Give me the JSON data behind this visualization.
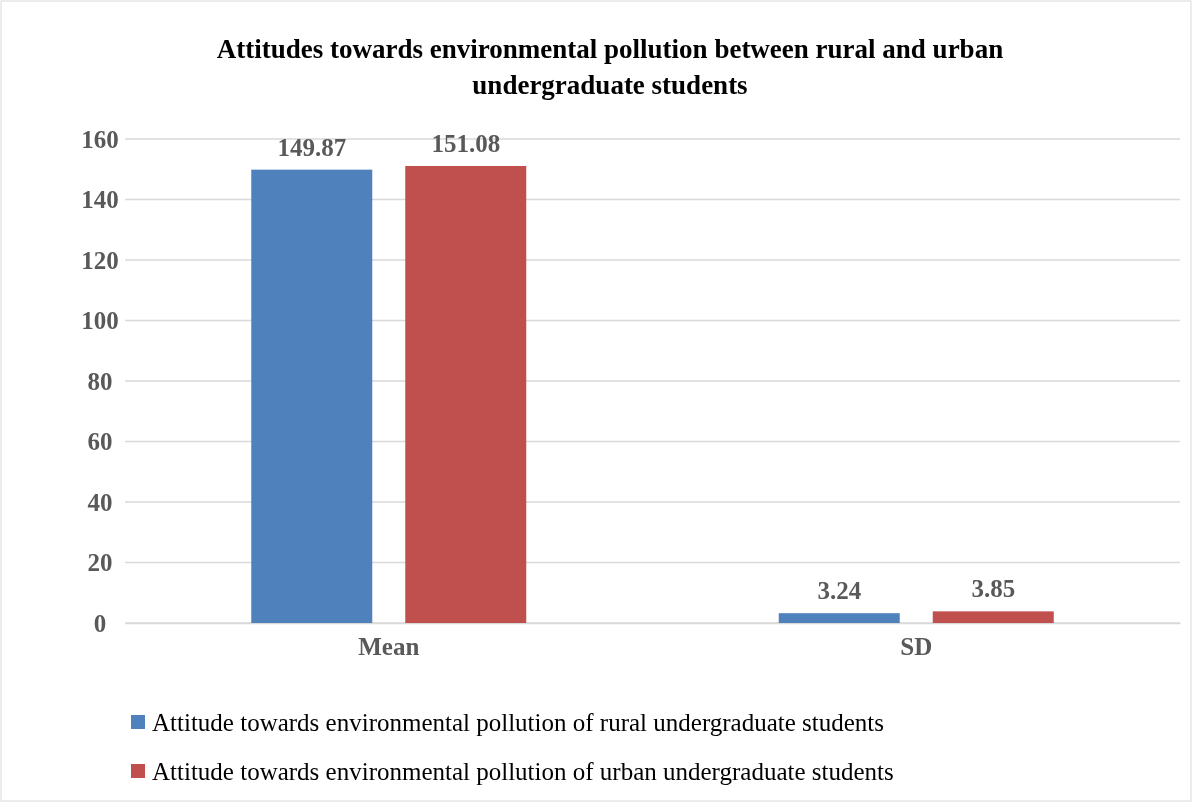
{
  "chart_data": {
    "type": "bar",
    "title": "Attitudes towards environmental pollution between rural and urban undergraduate students",
    "categories": [
      "Mean",
      "SD"
    ],
    "series": [
      {
        "name": "Attitude towards environmental pollution of rural undergraduate students",
        "color": "#4f81bd",
        "values": [
          149.87,
          3.24
        ]
      },
      {
        "name": "Attitude towards environmental pollution of urban undergraduate students",
        "color": "#c0504d",
        "values": [
          151.08,
          3.85
        ]
      }
    ],
    "ylim": [
      0,
      160
    ],
    "yticks": [
      0,
      20,
      40,
      60,
      80,
      100,
      120,
      140,
      160
    ],
    "grid": "y",
    "legend": "bottom",
    "data_labels": true
  }
}
